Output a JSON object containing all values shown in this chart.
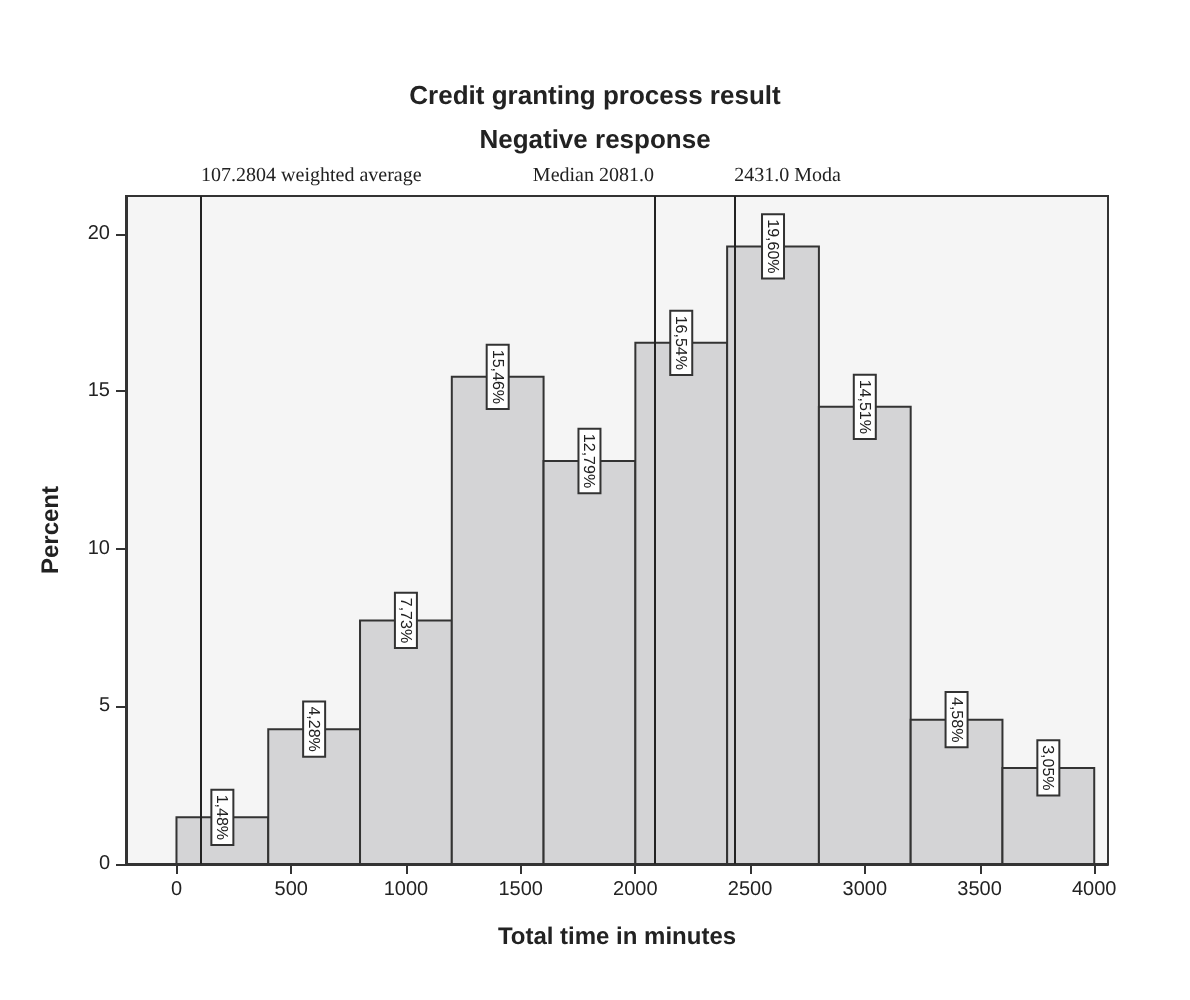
{
  "chart_data": {
    "type": "histogram",
    "title": "Credit granting process result",
    "subtitle": "Negative response",
    "xlabel": "Total time in minutes",
    "ylabel": "Percent",
    "bins": [
      0,
      400,
      800,
      1200,
      1600,
      2000,
      2400,
      2800,
      3200,
      3600,
      4000
    ],
    "values": [
      1.48,
      4.28,
      7.73,
      15.46,
      12.79,
      16.54,
      19.6,
      14.51,
      4.58,
      3.05
    ],
    "value_labels": [
      "1,48%",
      "4,28%",
      "7,73%",
      "15,46%",
      "12,79%",
      "16,54%",
      "19,60%",
      "14,51%",
      "4,58%",
      "3,05%"
    ],
    "color": "#d4d4d6",
    "xlim": [
      -220,
      4060
    ],
    "xticks": [
      0,
      500,
      1000,
      1500,
      2000,
      2500,
      3000,
      3500,
      4000
    ],
    "ylim": [
      0,
      21.2
    ],
    "yticks": [
      0,
      5,
      10,
      15,
      20
    ],
    "ref_lines": [
      {
        "axis": "x",
        "value": 107.2804,
        "label": "107.2804 weighted average"
      },
      {
        "axis": "x",
        "value": 2081.0,
        "label": "Median 2081.0"
      },
      {
        "axis": "x",
        "value": 2431.0,
        "label": "2431.0 Moda"
      }
    ],
    "grid": false
  }
}
